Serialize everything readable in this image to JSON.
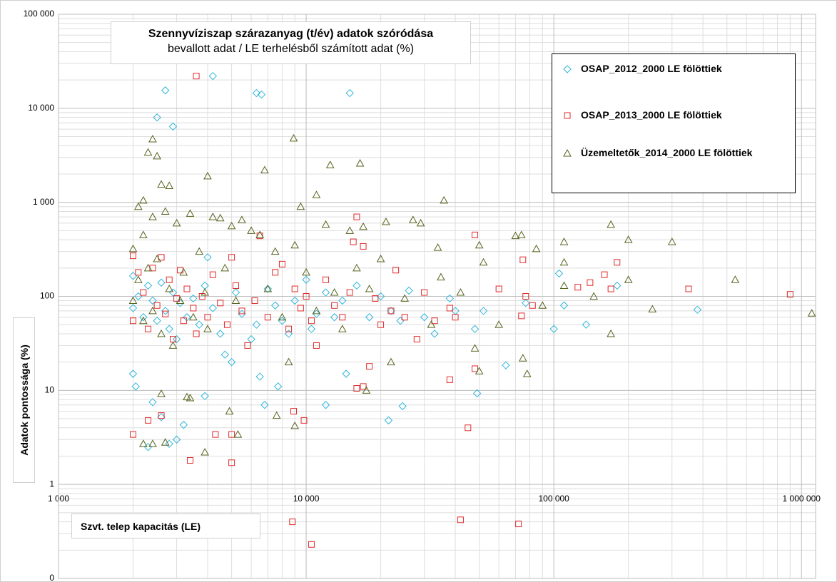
{
  "chart_data": {
    "type": "scatter",
    "title": "Szennyvíziszap szárazanyag (t/év) adatok szóródása",
    "subtitle": "bevallott adat / LE terhelésből számított adat (%)",
    "x_label": "Szvt. telep kapacitás (LE)",
    "y_label": "Adatok pontossága (%)",
    "xlog": true,
    "ylog": true,
    "grid": true,
    "minor_grid": true,
    "legend": "upper right",
    "xlim": [
      1000,
      1140000
    ],
    "ylim": [
      0.1,
      100000
    ],
    "xticks": [
      {
        "value": 1000,
        "label": "1 000"
      },
      {
        "value": 10000,
        "label": "10 000"
      },
      {
        "value": 100000,
        "label": "100 000"
      },
      {
        "value": 1000000,
        "label": "1 000 000"
      }
    ],
    "yticks": [
      {
        "value": 0.1,
        "label": "0"
      },
      1,
      10,
      100,
      {
        "value": 1000,
        "label": "1 000"
      },
      {
        "value": 10000,
        "label": "10 000"
      },
      {
        "value": 100000,
        "label": "100 000"
      }
    ],
    "series": [
      {
        "name": "OSAP_2012_2000 LE fölöttiek",
        "marker": "diamond",
        "color": "#31b6dc",
        "x": [
          2700,
          2500,
          2900,
          4200,
          6300,
          6600,
          15000,
          2000,
          2050,
          2300,
          2800,
          3000,
          3200,
          3900,
          2600,
          2400,
          6800,
          7700,
          12000,
          21500,
          24500,
          49000,
          64000,
          14500,
          100000,
          110000,
          105000,
          135000,
          180000,
          380000,
          48000,
          52000,
          77000,
          2000,
          2000,
          2100,
          2200,
          2300,
          2400,
          2500,
          2600,
          2700,
          2800,
          2900,
          3000,
          3100,
          3300,
          3500,
          3700,
          3900,
          4000,
          4200,
          4500,
          4700,
          5000,
          5200,
          5500,
          6000,
          6300,
          6500,
          7000,
          7500,
          8000,
          8500,
          9000,
          10000,
          10500,
          11000,
          12000,
          13000,
          14000,
          16000,
          18000,
          20000,
          22000,
          24000,
          26000,
          30000,
          33000,
          38000,
          40000
        ],
        "values": [
          15500,
          8000,
          6400,
          22000,
          14500,
          14000,
          14500,
          15,
          11,
          2.5,
          2.7,
          3,
          4.3,
          8.7,
          5.2,
          7.5,
          7,
          11,
          7,
          4.8,
          6.8,
          9.3,
          18.5,
          15,
          45,
          80,
          175,
          50,
          130,
          72,
          45,
          70,
          85,
          75,
          165,
          100,
          60,
          130,
          90,
          55,
          140,
          70,
          45,
          110,
          35,
          85,
          60,
          95,
          50,
          130,
          260,
          75,
          40,
          24,
          20,
          110,
          65,
          35,
          50,
          14,
          120,
          80,
          55,
          40,
          90,
          150,
          45,
          65,
          110,
          60,
          90,
          130,
          60,
          100,
          70,
          55,
          115,
          60,
          40,
          95,
          70
        ]
      },
      {
        "name": "OSAP_2013_2000 LE fölöttiek",
        "marker": "square",
        "color": "#e02a2a",
        "x": [
          3600,
          2000,
          3400,
          5000,
          4300,
          5000,
          2600,
          2300,
          8900,
          9800,
          45000,
          38000,
          8800,
          10500,
          42000,
          72000,
          900000,
          350000,
          180000,
          160000,
          170000,
          140000,
          125000,
          75000,
          77000,
          82000,
          60000,
          74000,
          48000,
          48000,
          16000,
          17000,
          15500,
          2000,
          2000,
          2100,
          2200,
          2300,
          2400,
          2500,
          2600,
          2700,
          2800,
          2900,
          3000,
          3100,
          3200,
          3300,
          3500,
          3600,
          3800,
          4000,
          4200,
          4500,
          4800,
          5000,
          5200,
          5500,
          5800,
          6200,
          6500,
          7000,
          7500,
          8000,
          8500,
          9000,
          9500,
          10000,
          10500,
          11000,
          12000,
          13000,
          14000,
          15000,
          16000,
          17000,
          18000,
          19000,
          20000,
          22000,
          23000,
          25000,
          28000,
          30000,
          33000,
          38000,
          40000
        ],
        "values": [
          22000,
          3.4,
          1.8,
          1.7,
          3.4,
          3.4,
          5.4,
          4.8,
          6,
          4.8,
          4,
          13,
          0.4,
          0.23,
          0.42,
          0.38,
          105,
          120,
          230,
          170,
          120,
          140,
          125,
          245,
          100,
          80,
          120,
          62,
          450,
          17,
          700,
          340,
          380,
          270,
          55,
          180,
          110,
          45,
          200,
          80,
          260,
          65,
          150,
          35,
          95,
          190,
          55,
          120,
          75,
          40,
          100,
          60,
          170,
          85,
          50,
          260,
          130,
          70,
          30,
          90,
          440,
          60,
          180,
          220,
          45,
          120,
          75,
          100,
          55,
          30,
          150,
          80,
          60,
          110,
          10.5,
          11,
          18,
          95,
          50,
          70,
          190,
          60,
          35,
          110,
          55,
          75,
          60
        ]
      },
      {
        "name": "Üzemeltetők_2014_2000 LE fölöttiek",
        "marker": "triangle",
        "color": "#55631c",
        "x": [
          8900,
          12500,
          16500,
          11000,
          36000,
          6800,
          4000,
          2300,
          2500,
          2400,
          2600,
          2800,
          2100,
          2200,
          1100000,
          540000,
          300000,
          250000,
          200000,
          200000,
          170000,
          170000,
          145000,
          110000,
          110000,
          110000,
          90000,
          85000,
          78000,
          75000,
          74000,
          70000,
          60000,
          52000,
          50000,
          48000,
          50000,
          35000,
          42000,
          2200,
          2400,
          2700,
          3900,
          9000,
          7600,
          5300,
          4900,
          2600,
          3300,
          3400,
          17500,
          2000,
          2000,
          2100,
          2200,
          2200,
          2300,
          2400,
          2400,
          2500,
          2600,
          2700,
          2800,
          2900,
          3000,
          3100,
          3200,
          3400,
          3500,
          3700,
          3900,
          4000,
          4200,
          4500,
          4700,
          5000,
          5200,
          5500,
          6000,
          6500,
          7000,
          7500,
          8000,
          8500,
          9000,
          9500,
          10000,
          11000,
          12000,
          13000,
          14000,
          15000,
          16000,
          17000,
          18000,
          20000,
          21000,
          22000,
          25000,
          27000,
          29000,
          32000,
          34000
        ],
        "values": [
          4800,
          2500,
          2600,
          1200,
          1050,
          2200,
          1900,
          3400,
          3100,
          4700,
          1550,
          1500,
          900,
          1050,
          66,
          150,
          380,
          73,
          400,
          150,
          580,
          40,
          100,
          380,
          230,
          130,
          80,
          320,
          15,
          22,
          450,
          440,
          50,
          230,
          350,
          28,
          16,
          160,
          110,
          2.7,
          2.7,
          2.8,
          2.2,
          4.2,
          5.4,
          3.4,
          6,
          9.2,
          8.5,
          8.3,
          10,
          90,
          320,
          150,
          55,
          450,
          200,
          70,
          700,
          250,
          40,
          800,
          120,
          30,
          600,
          90,
          180,
          760,
          60,
          300,
          110,
          45,
          700,
          680,
          200,
          560,
          90,
          650,
          500,
          450,
          120,
          300,
          60,
          20,
          350,
          900,
          180,
          70,
          580,
          110,
          45,
          500,
          200,
          550,
          120,
          250,
          620,
          20,
          95,
          650,
          600,
          50,
          330
        ]
      }
    ]
  }
}
